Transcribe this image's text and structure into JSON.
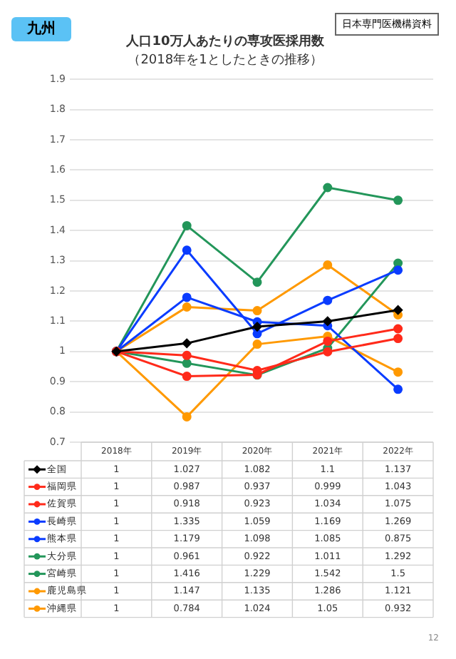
{
  "chart_data": {
    "type": "line",
    "title": "人口10万人あたりの専攻医採用数",
    "subtitle": "（2018年を1としたときの推移）",
    "categories": [
      "2018年",
      "2019年",
      "2020年",
      "2021年",
      "2022年"
    ],
    "series": [
      {
        "name": "全国",
        "color": "#000000",
        "marker": "diamond",
        "values": [
          1,
          1.027,
          1.082,
          1.1,
          1.137
        ]
      },
      {
        "name": "福岡県",
        "color": "#ff2a1a",
        "values": [
          1,
          0.987,
          0.937,
          0.999,
          1.043
        ]
      },
      {
        "name": "佐賀県",
        "color": "#ff2a1a",
        "values": [
          1,
          0.918,
          0.923,
          1.034,
          1.075
        ]
      },
      {
        "name": "長崎県",
        "color": "#0a3cff",
        "values": [
          1,
          1.335,
          1.059,
          1.169,
          1.269
        ]
      },
      {
        "name": "熊本県",
        "color": "#0a3cff",
        "values": [
          1,
          1.179,
          1.098,
          1.085,
          0.875
        ]
      },
      {
        "name": "大分県",
        "color": "#23965a",
        "values": [
          1,
          0.961,
          0.922,
          1.011,
          1.292
        ]
      },
      {
        "name": "宮崎県",
        "color": "#23965a",
        "values": [
          1,
          1.416,
          1.229,
          1.542,
          1.5
        ]
      },
      {
        "name": "鹿児島県",
        "color": "#ff9900",
        "values": [
          1,
          1.147,
          1.135,
          1.286,
          1.121
        ]
      },
      {
        "name": "沖縄県",
        "color": "#ff9900",
        "values": [
          1,
          0.784,
          1.024,
          1.05,
          0.932
        ]
      }
    ],
    "ylim": [
      0.7,
      1.9
    ],
    "yticks": [
      0.7,
      0.8,
      0.9,
      1,
      1.1,
      1.2,
      1.3,
      1.4,
      1.5,
      1.6,
      1.7,
      1.8,
      1.9
    ],
    "grid": "y",
    "marker": "circle",
    "line_style": "solid",
    "legend": "bottom",
    "data_labels": true,
    "annotations": [
      "九州",
      "日本専門医機構資料",
      "12"
    ]
  }
}
